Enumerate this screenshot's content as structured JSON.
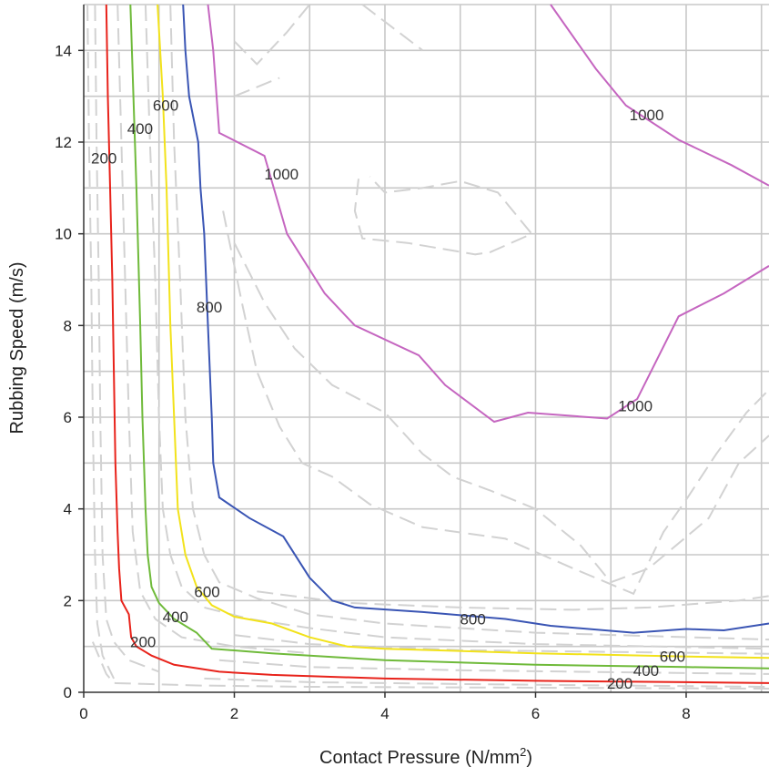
{
  "chart_data": {
    "type": "contour",
    "xlabel": "Contact Pressure (N/mm",
    "xlabel_sup": "2",
    "xlabel_end": ")",
    "ylabel": "Rubbing Speed (m/s)",
    "xlim": [
      0,
      9.1
    ],
    "ylim": [
      0,
      15
    ],
    "xticks": [
      0,
      2,
      4,
      6,
      8
    ],
    "yticks": [
      0,
      2,
      4,
      6,
      8,
      10,
      12,
      14
    ],
    "grid": true,
    "colors": {
      "200": "#e8231b",
      "400": "#6fba3a",
      "600": "#f2e21b",
      "800": "#3a55b4",
      "1000": "#c566c0",
      "minor": "#d2d2d2"
    },
    "series": [
      {
        "level": "200",
        "color": "#e8231b",
        "points": [
          [
            0.3,
            15
          ],
          [
            0.32,
            13
          ],
          [
            0.35,
            11
          ],
          [
            0.38,
            9
          ],
          [
            0.4,
            7
          ],
          [
            0.42,
            5
          ],
          [
            0.45,
            3.5
          ],
          [
            0.47,
            2.7
          ],
          [
            0.5,
            2.0
          ],
          [
            0.6,
            1.7
          ],
          [
            0.63,
            1.2
          ],
          [
            0.7,
            1.0
          ],
          [
            0.9,
            0.8
          ],
          [
            1.2,
            0.6
          ],
          [
            1.8,
            0.45
          ],
          [
            2.5,
            0.38
          ],
          [
            4,
            0.3
          ],
          [
            6,
            0.25
          ],
          [
            8,
            0.22
          ],
          [
            9.1,
            0.2
          ]
        ]
      },
      {
        "level": "400",
        "color": "#6fba3a",
        "points": [
          [
            0.62,
            15
          ],
          [
            0.66,
            13
          ],
          [
            0.7,
            11
          ],
          [
            0.75,
            8
          ],
          [
            0.78,
            6
          ],
          [
            0.82,
            4
          ],
          [
            0.85,
            3
          ],
          [
            0.9,
            2.3
          ],
          [
            1.0,
            1.95
          ],
          [
            1.2,
            1.6
          ],
          [
            1.5,
            1.3
          ],
          [
            1.7,
            0.95
          ],
          [
            2.5,
            0.85
          ],
          [
            4,
            0.7
          ],
          [
            6,
            0.6
          ],
          [
            8,
            0.55
          ],
          [
            9.1,
            0.52
          ]
        ]
      },
      {
        "level": "600",
        "color": "#f2e21b",
        "points": [
          [
            0.98,
            15
          ],
          [
            1.05,
            13
          ],
          [
            1.1,
            11
          ],
          [
            1.15,
            8
          ],
          [
            1.2,
            6
          ],
          [
            1.25,
            4
          ],
          [
            1.35,
            3
          ],
          [
            1.5,
            2.3
          ],
          [
            1.7,
            1.9
          ],
          [
            2.0,
            1.65
          ],
          [
            2.5,
            1.5
          ],
          [
            3,
            1.2
          ],
          [
            3.5,
            1.0
          ],
          [
            4,
            0.95
          ],
          [
            6,
            0.85
          ],
          [
            8,
            0.78
          ],
          [
            9.1,
            0.75
          ]
        ]
      },
      {
        "level": "800",
        "color": "#3a55b4",
        "points": [
          [
            1.32,
            15
          ],
          [
            1.35,
            14
          ],
          [
            1.4,
            13
          ],
          [
            1.52,
            12
          ],
          [
            1.55,
            11
          ],
          [
            1.6,
            10
          ],
          [
            1.65,
            8
          ],
          [
            1.7,
            6
          ],
          [
            1.72,
            5
          ],
          [
            1.73,
            4.9
          ],
          [
            1.8,
            4.25
          ],
          [
            2.2,
            3.8
          ],
          [
            2.65,
            3.4
          ],
          [
            3.0,
            2.5
          ],
          [
            3.3,
            2.0
          ],
          [
            3.6,
            1.85
          ],
          [
            4.5,
            1.75
          ],
          [
            5.6,
            1.6
          ],
          [
            6.2,
            1.45
          ],
          [
            7.3,
            1.3
          ],
          [
            8.0,
            1.38
          ],
          [
            8.5,
            1.35
          ],
          [
            9.1,
            1.5
          ]
        ]
      },
      {
        "level": "1000",
        "color": "#c566c0",
        "points": [
          [
            1.65,
            15
          ],
          [
            1.72,
            14
          ],
          [
            1.8,
            12.2
          ],
          [
            2.4,
            11.7
          ],
          [
            2.7,
            10.0
          ],
          [
            3.2,
            8.7
          ],
          [
            3.6,
            8.0
          ],
          [
            4.45,
            7.35
          ],
          [
            4.8,
            6.7
          ],
          [
            5.45,
            5.9
          ],
          [
            5.9,
            6.1
          ],
          [
            6.95,
            5.97
          ],
          [
            7.35,
            6.4
          ],
          [
            7.9,
            8.2
          ],
          [
            8.5,
            8.7
          ],
          [
            9.1,
            9.3
          ]
        ]
      },
      {
        "level": "1000",
        "color": "#c566c0",
        "points": [
          [
            6.2,
            15
          ],
          [
            6.8,
            13.6
          ],
          [
            7.2,
            12.8
          ],
          [
            7.9,
            12.05
          ],
          [
            8.6,
            11.5
          ],
          [
            9.1,
            11.05
          ]
        ]
      }
    ],
    "minor_contours": [
      [
        [
          0.15,
          15
        ],
        [
          0.17,
          12
        ],
        [
          0.2,
          9
        ],
        [
          0.22,
          6
        ],
        [
          0.25,
          3
        ],
        [
          0.3,
          1.6
        ],
        [
          0.4,
          1.1
        ],
        [
          0.6,
          0.7
        ],
        [
          1.0,
          0.45
        ]
      ],
      [
        [
          0.05,
          15
        ],
        [
          0.07,
          12
        ],
        [
          0.1,
          9
        ],
        [
          0.12,
          6
        ],
        [
          0.15,
          3
        ],
        [
          0.18,
          1.5
        ],
        [
          0.25,
          0.8
        ],
        [
          0.4,
          0.3
        ]
      ],
      [
        [
          0.45,
          15
        ],
        [
          0.5,
          12
        ],
        [
          0.55,
          9
        ],
        [
          0.6,
          6
        ],
        [
          0.65,
          3.5
        ],
        [
          0.75,
          2.2
        ],
        [
          0.95,
          1.6
        ],
        [
          1.3,
          1.2
        ],
        [
          2,
          1.0
        ],
        [
          3,
          0.85
        ]
      ],
      [
        [
          0.82,
          15
        ],
        [
          0.88,
          12
        ],
        [
          0.95,
          9
        ],
        [
          1.0,
          6
        ],
        [
          1.05,
          4
        ],
        [
          1.15,
          3
        ],
        [
          1.3,
          2.3
        ],
        [
          1.6,
          1.85
        ],
        [
          2.2,
          1.6
        ],
        [
          3,
          1.4
        ],
        [
          4,
          1.2
        ],
        [
          6,
          1.05
        ],
        [
          9.1,
          0.95
        ]
      ],
      [
        [
          1.15,
          15
        ],
        [
          1.2,
          12
        ],
        [
          1.28,
          9
        ],
        [
          1.35,
          6
        ],
        [
          1.45,
          4
        ],
        [
          1.6,
          3
        ],
        [
          1.8,
          2.4
        ],
        [
          2.3,
          2.05
        ],
        [
          3,
          1.7
        ],
        [
          4,
          1.5
        ],
        [
          6,
          1.3
        ],
        [
          9.1,
          1.15
        ]
      ],
      [
        [
          0.12,
          1.1
        ],
        [
          0.3,
          0.4
        ],
        [
          0.4,
          0.2
        ],
        [
          1.5,
          0.15
        ],
        [
          3,
          0.12
        ],
        [
          6,
          0.1
        ],
        [
          9.1,
          0.08
        ]
      ],
      [
        [
          1.6,
          0.3
        ],
        [
          3,
          0.22
        ],
        [
          5,
          0.18
        ],
        [
          7,
          0.15
        ],
        [
          9.1,
          0.12
        ]
      ],
      [
        [
          1.8,
          0.7
        ],
        [
          3,
          0.55
        ],
        [
          5,
          0.48
        ],
        [
          7,
          0.44
        ],
        [
          9.1,
          0.4
        ]
      ],
      [
        [
          2.0,
          1.25
        ],
        [
          3,
          1.05
        ],
        [
          5,
          0.92
        ],
        [
          7,
          0.88
        ],
        [
          9.1,
          0.84
        ]
      ],
      [
        [
          2.3,
          2.2
        ],
        [
          3.5,
          1.95
        ],
        [
          5,
          1.85
        ],
        [
          6.5,
          1.8
        ],
        [
          7.5,
          1.85
        ],
        [
          8.7,
          2.0
        ],
        [
          9.1,
          2.1
        ]
      ],
      [
        [
          1.85,
          10.5
        ],
        [
          2.1,
          8.5
        ],
        [
          2.3,
          7
        ],
        [
          2.6,
          5.8
        ],
        [
          2.9,
          5
        ],
        [
          3.3,
          4.7
        ],
        [
          3.8,
          4.1
        ],
        [
          4.5,
          3.6
        ],
        [
          5.6,
          3.35
        ],
        [
          6.5,
          2.7
        ],
        [
          7.3,
          2.15
        ],
        [
          7.7,
          3.5
        ],
        [
          8.0,
          4.2
        ],
        [
          8.4,
          5.2
        ],
        [
          8.8,
          6.1
        ],
        [
          9.1,
          6.6
        ]
      ],
      [
        [
          2.0,
          14.2
        ],
        [
          2.3,
          13.7
        ],
        [
          2.7,
          14.4
        ],
        [
          3.0,
          15
        ]
      ],
      [
        [
          2.0,
          9.8
        ],
        [
          2.4,
          8.5
        ],
        [
          2.8,
          7.5
        ],
        [
          3.3,
          6.7
        ],
        [
          4.0,
          6.1
        ],
        [
          4.5,
          5.2
        ],
        [
          4.9,
          4.7
        ],
        [
          5.4,
          4.4
        ],
        [
          6.0,
          4.0
        ],
        [
          6.6,
          3.2
        ],
        [
          7.0,
          2.4
        ],
        [
          7.5,
          2.7
        ],
        [
          8.3,
          3.8
        ],
        [
          8.7,
          5.0
        ],
        [
          9.1,
          5.6
        ]
      ],
      [
        [
          3.7,
          15
        ],
        [
          4.1,
          14.5
        ],
        [
          4.5,
          14.0
        ]
      ],
      [
        [
          2.0,
          13.0
        ],
        [
          2.6,
          13.4
        ]
      ],
      [
        [
          3.65,
          11.2
        ],
        [
          3.6,
          10.5
        ],
        [
          3.7,
          9.9
        ],
        [
          4.3,
          9.8
        ],
        [
          5.2,
          9.55
        ],
        [
          5.4,
          9.6
        ],
        [
          5.95,
          10.0
        ],
        [
          5.5,
          10.9
        ],
        [
          5.0,
          11.15
        ],
        [
          4.5,
          11.0
        ],
        [
          4.0,
          10.9
        ],
        [
          3.8,
          11.25
        ]
      ]
    ],
    "labels": [
      {
        "text": "200",
        "x": 0.0,
        "y": 11.65
      },
      {
        "text": "400",
        "x": 0.48,
        "y": 12.3
      },
      {
        "text": "600",
        "x": 0.82,
        "y": 12.8
      },
      {
        "text": "800",
        "x": 1.4,
        "y": 8.4
      },
      {
        "text": "1000",
        "x": 2.3,
        "y": 11.3
      },
      {
        "text": "1000",
        "x": 7.15,
        "y": 12.6
      },
      {
        "text": "1000",
        "x": 7.0,
        "y": 6.25
      },
      {
        "text": "600",
        "x": 1.37,
        "y": 2.2
      },
      {
        "text": "400",
        "x": 0.95,
        "y": 1.65
      },
      {
        "text": "200",
        "x": 0.52,
        "y": 1.1
      },
      {
        "text": "800",
        "x": 4.9,
        "y": 1.6
      },
      {
        "text": "600",
        "x": 7.55,
        "y": 0.78
      },
      {
        "text": "400",
        "x": 7.2,
        "y": 0.48
      },
      {
        "text": "200",
        "x": 6.85,
        "y": 0.2
      }
    ]
  }
}
